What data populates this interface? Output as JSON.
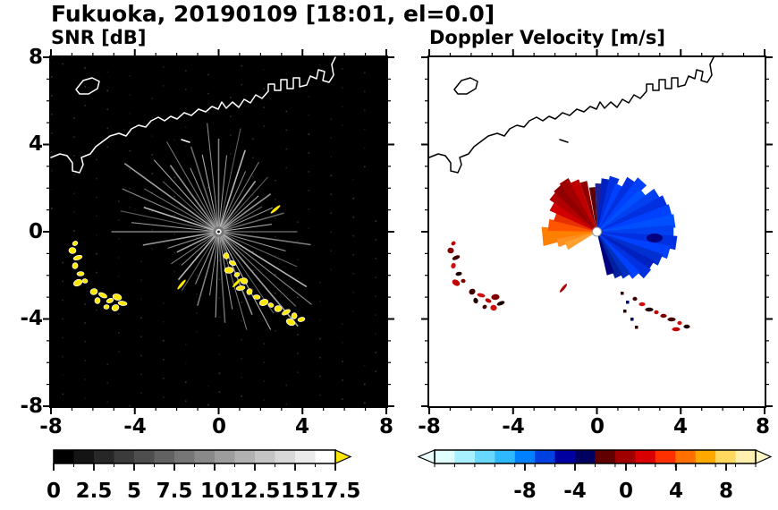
{
  "header": {
    "title": "Fukuoka, 20190109 [18:01, el=0.0]",
    "station": "Fukuoka",
    "date": "20190109",
    "time": "18:01",
    "elevation": "0.0"
  },
  "panels": {
    "snr": {
      "label": "SNR [dB]"
    },
    "doppler": {
      "label": "Doppler Velocity [m/s]"
    }
  },
  "axes": {
    "x_ticks": [
      "-8",
      "-4",
      "0",
      "4",
      "8"
    ],
    "y_ticks": [
      "8",
      "4",
      "0",
      "-4",
      "-8"
    ]
  },
  "colorbars": {
    "snr": {
      "ticks": [
        "0",
        "2.5",
        "5",
        "7.5",
        "10",
        "12.5",
        "15",
        "17.5"
      ]
    },
    "doppler": {
      "ticks": [
        "-8",
        "-4",
        "0",
        "4",
        "8"
      ]
    }
  },
  "colors": {
    "clutter_yellow": "#ffe800",
    "background_snr": "#000000",
    "background_doppler": "#ffffff",
    "frame": "#000000"
  },
  "chart_data": [
    {
      "type": "heatmap",
      "title": "SNR [dB]",
      "xlabel": "",
      "ylabel": "",
      "xlim": [
        -8,
        8
      ],
      "ylim": [
        -8,
        8
      ],
      "x_ticks": [
        -8,
        -4,
        0,
        4,
        8
      ],
      "y_ticks": [
        8,
        4,
        0,
        -4,
        -8
      ],
      "grid": false,
      "legend": "none",
      "colorbar": {
        "label": "SNR [dB]",
        "range": [
          0,
          17.5
        ],
        "ticks": [
          0,
          2.5,
          5,
          7.5,
          10,
          12.5,
          15,
          17.5
        ],
        "colormap": "black-to-white grayscale, yellow over-range arrow at right end"
      },
      "features": [
        {
          "name": "radar-origin",
          "x": 0,
          "y": 0
        },
        {
          "name": "radial-beams",
          "description": "gray radial spokes of moderate SNR radiating from origin out to ~3-6 units in most azimuths, densest toward NW and SE"
        },
        {
          "name": "clutter-yellow-west",
          "description": "chain of saturated (>17.5 dB, yellow) clutter blobs from about (-7, -0.5) down to (-4.5, -3.8)"
        },
        {
          "name": "clutter-yellow-southeast",
          "description": "arc of saturated yellow clutter from about (0.3, -1.2) to (4, -4.3)"
        },
        {
          "name": "coastline",
          "description": "white coastline with small island and rectangular harbor piers across the upper third, on black low-SNR background"
        }
      ]
    },
    {
      "type": "heatmap",
      "title": "Doppler Velocity [m/s]",
      "xlabel": "",
      "ylabel": "",
      "xlim": [
        -8,
        8
      ],
      "ylim": [
        -8,
        8
      ],
      "x_ticks": [
        -8,
        -4,
        0,
        4,
        8
      ],
      "y_ticks": [
        8,
        4,
        0,
        -4,
        -8
      ],
      "grid": false,
      "legend": "none",
      "colorbar": {
        "label": "Doppler Velocity [m/s]",
        "range": [
          -10,
          10
        ],
        "ticks": [
          -8,
          -4,
          0,
          4,
          8
        ],
        "colormap": "diverging: pale cyan - cyan - blue - navy | dark red - red - orange - pale yellow, with under/over arrows on both ends"
      },
      "features": [
        {
          "name": "radar-origin",
          "x": 0,
          "y": 0
        },
        {
          "name": "negative-velocity-fan",
          "description": "blue/navy wedges (approx -2 to -8 m/s) east through southeast of the origin out to ~3.5 units"
        },
        {
          "name": "positive-velocity-fan",
          "description": "orange/red/dark-red wedges (approx +2 to +8 m/s) west through northwest of the origin out to ~2.5 units"
        },
        {
          "name": "clutter-west",
          "description": "red/dark clutter chain from about (-7, -0.5) to (-5, -4)"
        },
        {
          "name": "clutter-southeast",
          "description": "red/dark clutter arc near (1.5, -3) to (4.2, -4.5)"
        },
        {
          "name": "coastline",
          "description": "black coastline with island and harbor piers across the upper third, on white background"
        }
      ]
    }
  ]
}
